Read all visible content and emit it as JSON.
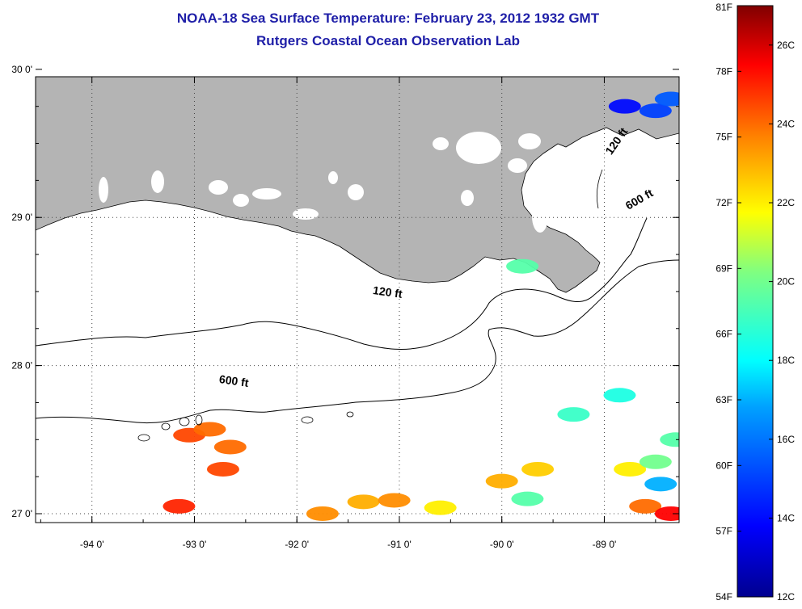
{
  "title": {
    "line1": "NOAA-18 Sea Surface Temperature:  February 23, 2012 1932 GMT",
    "line2": "Rutgers Coastal Ocean Observation Lab"
  },
  "map": {
    "lon_range": [
      -94.55,
      -88.27
    ],
    "lat_range": [
      26.94,
      29.95
    ],
    "lon_ticks": [
      {
        "value": -94,
        "label": "-94 0'"
      },
      {
        "value": -93,
        "label": "-93 0'"
      },
      {
        "value": -92,
        "label": "-92 0'"
      },
      {
        "value": -91,
        "label": "-91 0'"
      },
      {
        "value": -90,
        "label": "-90 0'"
      },
      {
        "value": -89,
        "label": "-89 0'"
      }
    ],
    "lat_ticks": [
      {
        "value": 30,
        "label": "30 0'"
      },
      {
        "value": 29,
        "label": "29 0'"
      },
      {
        "value": 28,
        "label": "28 0'"
      },
      {
        "value": 27,
        "label": "27 0'"
      }
    ],
    "gridlines": "dotted",
    "land_color": "#b4b4b4",
    "water_color": "#ffffff",
    "contour_labels": [
      {
        "id": "c120a",
        "text": "120 ft",
        "lon": -91.12,
        "lat": 28.47
      },
      {
        "id": "c600a",
        "text": "600 ft",
        "lon": -92.62,
        "lat": 27.87
      },
      {
        "id": "c120b",
        "text": "120 ft",
        "lon": -88.85,
        "lat": 29.5
      },
      {
        "id": "c600b",
        "text": "600 ft",
        "lon": -88.64,
        "lat": 29.1
      }
    ]
  },
  "colorbar": {
    "range_f": [
      54,
      81
    ],
    "range_c": [
      12,
      27
    ],
    "f_labels": [
      "81F",
      "78F",
      "75F",
      "72F",
      "69F",
      "66F",
      "63F",
      "60F",
      "57F",
      "54F"
    ],
    "f_values": [
      81,
      78,
      75,
      72,
      69,
      66,
      63,
      60,
      57,
      54
    ],
    "c_labels": [
      "26C",
      "24C",
      "22C",
      "20C",
      "18C",
      "16C",
      "14C",
      "12C"
    ],
    "c_values": [
      26,
      24,
      22,
      20,
      18,
      16,
      14,
      12
    ],
    "colors": [
      "#00008f",
      "#0000ff",
      "#00a0ff",
      "#00ffff",
      "#80ff80",
      "#ffff00",
      "#ff8000",
      "#ff0000",
      "#800000"
    ]
  },
  "sst_patches": [
    {
      "lon": -93.05,
      "lat": 27.53,
      "temp_c": 24.5
    },
    {
      "lon": -92.85,
      "lat": 27.57,
      "temp_c": 24.0
    },
    {
      "lon": -92.65,
      "lat": 27.45,
      "temp_c": 24.0
    },
    {
      "lon": -92.72,
      "lat": 27.3,
      "temp_c": 24.5
    },
    {
      "lon": -93.15,
      "lat": 27.05,
      "temp_c": 25.0
    },
    {
      "lon": -91.75,
      "lat": 27.0,
      "temp_c": 23.5
    },
    {
      "lon": -91.35,
      "lat": 27.08,
      "temp_c": 23.0
    },
    {
      "lon": -91.05,
      "lat": 27.09,
      "temp_c": 23.5
    },
    {
      "lon": -90.6,
      "lat": 27.04,
      "temp_c": 22.0
    },
    {
      "lon": -90.0,
      "lat": 27.22,
      "temp_c": 23.0
    },
    {
      "lon": -89.65,
      "lat": 27.3,
      "temp_c": 22.5
    },
    {
      "lon": -89.75,
      "lat": 27.1,
      "temp_c": 19.5
    },
    {
      "lon": -89.3,
      "lat": 27.67,
      "temp_c": 19.0
    },
    {
      "lon": -88.85,
      "lat": 27.8,
      "temp_c": 18.5
    },
    {
      "lon": -88.75,
      "lat": 27.3,
      "temp_c": 22.0
    },
    {
      "lon": -88.5,
      "lat": 27.35,
      "temp_c": 20.0
    },
    {
      "lon": -88.45,
      "lat": 27.2,
      "temp_c": 17.0
    },
    {
      "lon": -88.6,
      "lat": 27.05,
      "temp_c": 24.0
    },
    {
      "lon": -88.35,
      "lat": 27.0,
      "temp_c": 25.5
    },
    {
      "lon": -88.3,
      "lat": 27.5,
      "temp_c": 19.5
    },
    {
      "lon": -88.8,
      "lat": 29.75,
      "temp_c": 14.0
    },
    {
      "lon": -88.5,
      "lat": 29.72,
      "temp_c": 15.0
    },
    {
      "lon": -88.35,
      "lat": 29.8,
      "temp_c": 15.5
    },
    {
      "lon": -89.8,
      "lat": 28.67,
      "temp_c": 19.5
    }
  ]
}
